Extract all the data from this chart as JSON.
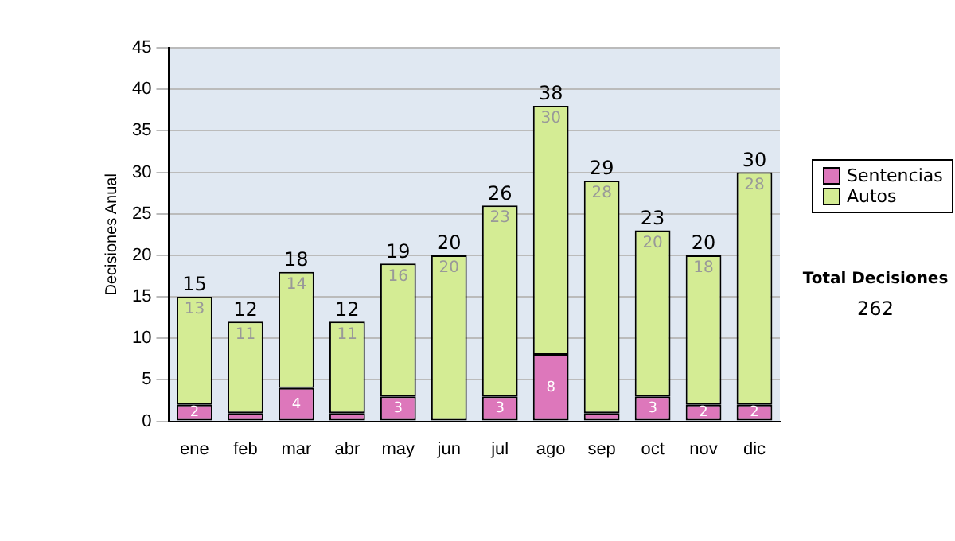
{
  "chart_data": {
    "type": "bar",
    "stacked": true,
    "ylabel": "Decisiones Anual",
    "categories": [
      "ene",
      "feb",
      "mar",
      "abr",
      "may",
      "jun",
      "jul",
      "ago",
      "sep",
      "oct",
      "nov",
      "dic"
    ],
    "series": [
      {
        "name": "Sentencias",
        "color": "#dd77bb",
        "values": [
          2,
          1,
          4,
          1,
          3,
          0,
          3,
          8,
          1,
          3,
          2,
          2
        ],
        "value_labels": [
          "2",
          null,
          "4",
          null,
          "3",
          null,
          "3",
          "8",
          null,
          "3",
          "2",
          "2"
        ]
      },
      {
        "name": "Autos",
        "color": "#d4ec94",
        "values": [
          13,
          11,
          14,
          11,
          16,
          20,
          23,
          30,
          28,
          20,
          18,
          28
        ],
        "value_labels": [
          "13",
          "11",
          "14",
          "11",
          "16",
          "20",
          "23",
          "30",
          "28",
          "20",
          "18",
          "28"
        ]
      }
    ],
    "totals": [
      "15",
      "12",
      "18",
      "12",
      "19",
      "20",
      "26",
      "38",
      "29",
      "23",
      "20",
      "30"
    ],
    "ylim": [
      0,
      45
    ],
    "yticks": [
      0,
      5,
      10,
      15,
      20,
      25,
      30,
      35,
      40,
      45
    ],
    "grid": "y",
    "legend": "right",
    "annotations": [
      "Total Decisiones",
      "262"
    ]
  }
}
